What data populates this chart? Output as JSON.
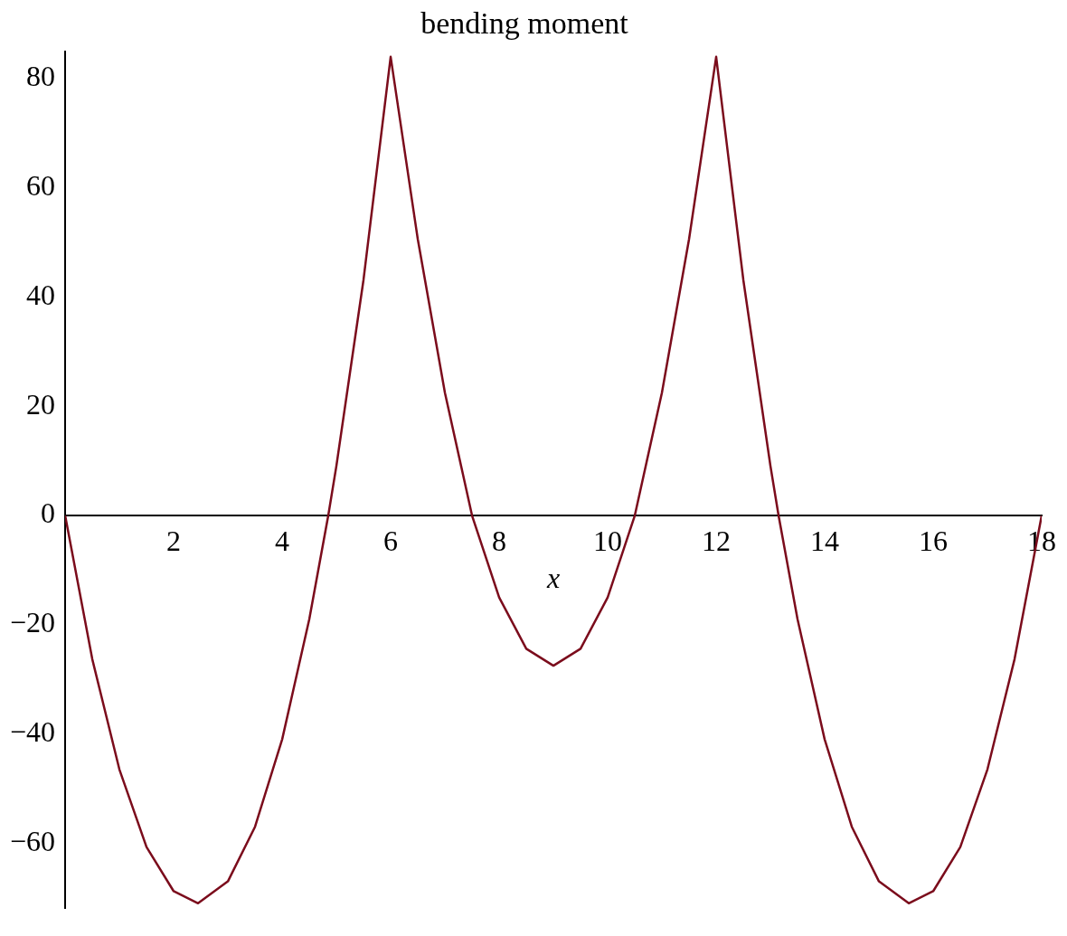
{
  "chart_data": {
    "type": "line",
    "title": "bending moment",
    "xlabel": "x",
    "xlim": [
      0,
      18
    ],
    "ylim": [
      -72,
      85
    ],
    "xticks": [
      2,
      4,
      6,
      8,
      10,
      12,
      14,
      16,
      18
    ],
    "yticks": [
      {
        "value": -60,
        "label": "−60"
      },
      {
        "value": -40,
        "label": "−40"
      },
      {
        "value": -20,
        "label": "−20"
      },
      0,
      20,
      40,
      60,
      80
    ],
    "grid": false,
    "legend": false,
    "marker": "none",
    "line_style": "solid",
    "series": [
      {
        "color": "#7b0c1c",
        "x": [
          0,
          0.5,
          1,
          1.5,
          2,
          2.45,
          3,
          3.5,
          4,
          4.5,
          4.85,
          5,
          5.5,
          6,
          6.5,
          7,
          7.5,
          8,
          8.5,
          9,
          9.5,
          10,
          10.5,
          11,
          11.5,
          12,
          12.5,
          13,
          13.15,
          13.5,
          14,
          14.5,
          15,
          15.55,
          16,
          16.5,
          17,
          17.5,
          18
        ],
        "values": [
          0,
          -26.3,
          -46.5,
          -60.7,
          -68.8,
          -71,
          -67,
          -57,
          -41,
          -19,
          0,
          9.1,
          43.2,
          84,
          50.6,
          22.5,
          0,
          -15,
          -24.4,
          -27.5,
          -24.4,
          -15,
          0,
          22.5,
          50.6,
          84,
          43.2,
          9.1,
          0,
          -19,
          -41,
          -57,
          -67,
          -71,
          -68.8,
          -60.7,
          -46.5,
          -26.3,
          0
        ]
      }
    ]
  }
}
